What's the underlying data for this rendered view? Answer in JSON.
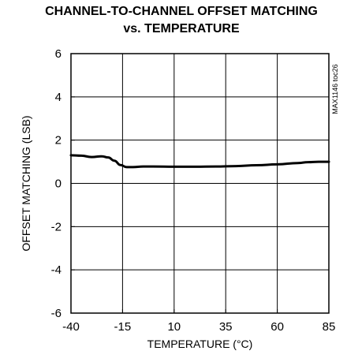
{
  "chart_data": {
    "type": "line",
    "title_line1": "CHANNEL-TO-CHANNEL OFFSET MATCHING",
    "title_line2": "vs. TEMPERATURE",
    "xlabel": "TEMPERATURE (°C)",
    "ylabel": "OFFSET MATCHING (LSB)",
    "xlim": [
      -40,
      85
    ],
    "ylim": [
      -6,
      6
    ],
    "x_ticks": [
      -40,
      -15,
      10,
      35,
      60,
      85
    ],
    "y_ticks": [
      6,
      4,
      2,
      0,
      -2,
      -4,
      -6
    ],
    "x_tick_labels": [
      "-40",
      "-15",
      "10",
      "35",
      "60",
      "85"
    ],
    "y_tick_labels": [
      "6",
      "4",
      "2",
      "0",
      "-2",
      "-4",
      "-6"
    ],
    "grid": true,
    "annotation": "MAX1146 toc26",
    "series": [
      {
        "x": [
          -40,
          -35,
          -30,
          -25,
          -22,
          -19,
          -16,
          -13,
          -10,
          -5,
          0,
          10,
          20,
          30,
          40,
          50,
          60,
          70,
          75,
          80,
          85
        ],
        "y": [
          1.3,
          1.28,
          1.22,
          1.25,
          1.2,
          1.05,
          0.85,
          0.75,
          0.75,
          0.78,
          0.78,
          0.77,
          0.77,
          0.78,
          0.8,
          0.84,
          0.88,
          0.94,
          0.98,
          1.0,
          1.0
        ]
      }
    ]
  }
}
